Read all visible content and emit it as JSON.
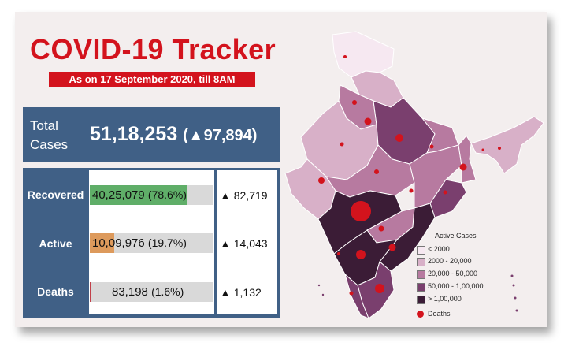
{
  "header": {
    "title": "COVID-19 Tracker",
    "subtitle": "As on 17 September 2020, till 8AM"
  },
  "total": {
    "label_line1": "Total",
    "label_line2": "Cases",
    "value": "51,18,253",
    "change": "(▲97,894)"
  },
  "stats": [
    {
      "label": "Recovered",
      "value": "40,25,079",
      "percent": "(78.6%)",
      "change": "▲ 82,719",
      "fraction": 0.786,
      "color": "#5fae68"
    },
    {
      "label": "Active",
      "value": "10,09,976",
      "percent": "(19.7%)",
      "change": "▲ 14,043",
      "fraction": 0.197,
      "color": "#dd9a5c"
    },
    {
      "label": "Deaths",
      "value": "83,198",
      "percent": "(1.6%)",
      "change": "▲ 1,132",
      "fraction": 0.016,
      "color": "#c2404a"
    }
  ],
  "legend": {
    "title": "Active Cases",
    "items": [
      {
        "label": "< 2000",
        "color": "#f6e8f1"
      },
      {
        "label": "2000 - 20,000",
        "color": "#d8b0c8"
      },
      {
        "label": "20,000 - 50,000",
        "color": "#b77aa0"
      },
      {
        "label": "50,000 - 1,00,000",
        "color": "#7a3f6e"
      },
      {
        "label": "> 1,00,000",
        "color": "#3b1c36"
      }
    ],
    "deaths_label": "Deaths",
    "deaths_color": "#d3131d"
  }
}
